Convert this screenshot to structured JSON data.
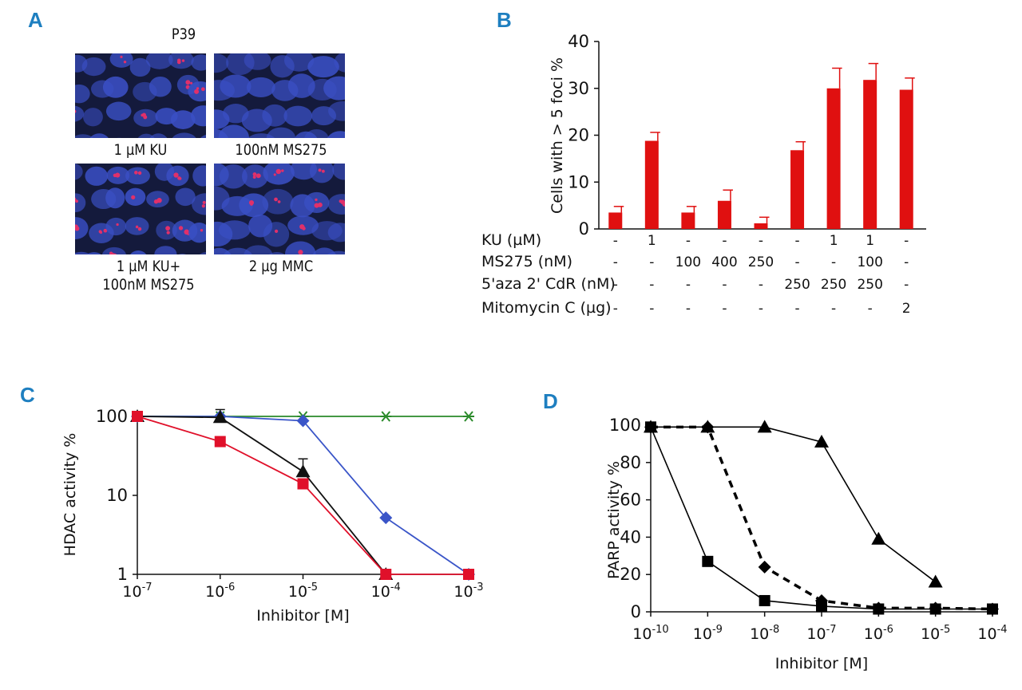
{
  "panel_labels": {
    "a": "A",
    "b": "B",
    "c": "C",
    "d": "D"
  },
  "panel_a": {
    "title": "P39",
    "images": [
      {
        "caption": "1 µM KU",
        "cells": "nuclei-blue",
        "foci_color": "#e0306a"
      },
      {
        "caption": "100nM MS275",
        "cells": "nuclei-blue",
        "foci_color": "#e0306a"
      },
      {
        "caption_line1": "1 µM KU+",
        "caption_line2": "100nM MS275",
        "cells": "nuclei-blue",
        "foci_color": "#e0306a"
      },
      {
        "caption": "2 µg MMC",
        "cells": "nuclei-blue",
        "foci_color": "#e0306a"
      }
    ],
    "nucleus_color": "#3a4fc4",
    "background_color": "#141a3c"
  },
  "chart_data": [
    {
      "panel": "B",
      "type": "bar",
      "ylabel": "Cells with > 5 foci %",
      "ylim": [
        0,
        40
      ],
      "yticks": [
        0,
        10,
        20,
        30,
        40
      ],
      "values": [
        3.5,
        18.8,
        3.5,
        6.0,
        1.2,
        16.8,
        30.0,
        31.8,
        29.7
      ],
      "errors": [
        1.3,
        1.8,
        1.3,
        2.3,
        1.3,
        1.8,
        4.3,
        3.5,
        2.5
      ],
      "bar_color": "#e01010",
      "condition_rows": [
        {
          "label": "KU (µM)",
          "values": [
            "-",
            "1",
            "-",
            "-",
            "-",
            "-",
            "1",
            "1",
            "-"
          ]
        },
        {
          "label": "MS275 (nM)",
          "values": [
            "-",
            "-",
            "100",
            "400",
            "250",
            "-",
            "-",
            "100",
            "-"
          ]
        },
        {
          "label": "5'aza 2' CdR (nM)",
          "values": [
            "-",
            "-",
            "-",
            "-",
            "-",
            "250",
            "250",
            "250",
            "-"
          ]
        },
        {
          "label": "Mitomycin C (µg)",
          "values": [
            "-",
            "-",
            "-",
            "-",
            "-",
            "-",
            "-",
            "-",
            "2"
          ]
        }
      ]
    },
    {
      "panel": "C",
      "type": "line",
      "yscale": "log",
      "xscale": "log",
      "ylabel": "HDAC activity %",
      "xlabel": "Inhibitor [M]",
      "ylim": [
        1,
        100
      ],
      "xlim": [
        1e-07,
        0.001
      ],
      "yticks": [
        "1",
        "10",
        "100"
      ],
      "xticks": [
        {
          "base": "10",
          "exp": "-7"
        },
        {
          "base": "10",
          "exp": "-6"
        },
        {
          "base": "10",
          "exp": "-5"
        },
        {
          "base": "10",
          "exp": "-4"
        },
        {
          "base": "10",
          "exp": "-3"
        }
      ],
      "series": [
        {
          "name": "red-square",
          "color": "#e0102a",
          "marker": "square",
          "x": [
            1e-07,
            1e-06,
            1e-05,
            0.0001,
            0.001
          ],
          "y": [
            100,
            48,
            14,
            1,
            1
          ]
        },
        {
          "name": "black-triangle",
          "color": "#111111",
          "marker": "triangle",
          "x": [
            1e-07,
            1e-06,
            1e-05,
            0.0001
          ],
          "y": [
            100,
            97,
            20,
            1
          ],
          "errors": [
            0,
            25,
            9,
            0
          ]
        },
        {
          "name": "blue-diamond",
          "color": "#3a55c8",
          "marker": "diamond",
          "x": [
            1e-07,
            1e-06,
            1e-05,
            0.0001,
            0.001
          ],
          "y": [
            100,
            100,
            88,
            5.2,
            1
          ]
        },
        {
          "name": "green-star",
          "color": "#2a8a2a",
          "marker": "star",
          "x": [
            1e-07,
            1e-06,
            1e-05,
            0.0001,
            0.001
          ],
          "y": [
            100,
            100,
            100,
            100,
            100
          ]
        }
      ]
    },
    {
      "panel": "D",
      "type": "line",
      "xscale": "log",
      "ylabel": "PARP activity %",
      "xlabel": "Inhibitor [M]",
      "ylim": [
        0,
        100
      ],
      "xlim": [
        1e-10,
        0.0001
      ],
      "yticks": [
        "0",
        "20",
        "40",
        "60",
        "80",
        "100"
      ],
      "xticks": [
        {
          "base": "10",
          "exp": "-10"
        },
        {
          "base": "10",
          "exp": "-9"
        },
        {
          "base": "10",
          "exp": "-8"
        },
        {
          "base": "10",
          "exp": "-7"
        },
        {
          "base": "10",
          "exp": "-6"
        },
        {
          "base": "10",
          "exp": "-5"
        },
        {
          "base": "10",
          "exp": "-4"
        }
      ],
      "series": [
        {
          "name": "square",
          "color": "#000000",
          "marker": "square",
          "dash": false,
          "x": [
            1e-10,
            1e-09,
            1e-08,
            1e-07,
            1e-06,
            1e-05,
            0.0001
          ],
          "y": [
            99,
            27,
            6,
            3,
            1.5,
            1.5,
            1.5
          ]
        },
        {
          "name": "diamond",
          "color": "#000000",
          "marker": "diamond",
          "dash": true,
          "x": [
            1e-10,
            1e-09,
            1e-08,
            1e-07,
            1e-06,
            1e-05,
            0.0001
          ],
          "y": [
            99,
            99,
            24,
            6,
            2,
            2,
            1.5
          ]
        },
        {
          "name": "triangle",
          "color": "#000000",
          "marker": "triangle",
          "dash": false,
          "x": [
            1e-10,
            1e-09,
            1e-08,
            1e-07,
            1e-06,
            1e-05
          ],
          "y": [
            99,
            99,
            99,
            91,
            39,
            16
          ]
        }
      ]
    }
  ]
}
